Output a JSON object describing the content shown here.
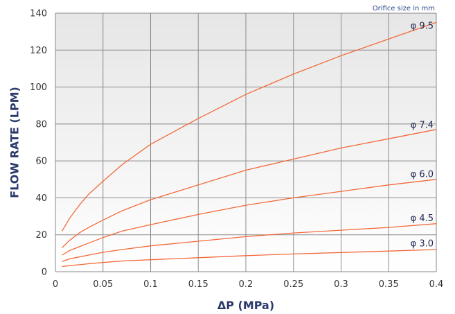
{
  "chart_data": {
    "type": "line",
    "title": "",
    "xlabel": "ΔP (MPa)",
    "ylabel": "FLOW RATE (LPM)",
    "annotation": "Orifice size in mm",
    "xlim": [
      0,
      0.4
    ],
    "ylim": [
      0,
      140
    ],
    "x_ticks": [
      "0",
      "0.05",
      "0.1",
      "0.15",
      "0.2",
      "0.25",
      "0.3",
      "0.35",
      "0.4"
    ],
    "y_ticks": [
      "0",
      "20",
      "40",
      "60",
      "80",
      "100",
      "120",
      "140"
    ],
    "grid": true,
    "colors": {
      "line": "#f26a3a",
      "plot_bg_top": "#e6e6e6",
      "plot_bg_bottom": "#ffffff",
      "grid": "#8a8a8a",
      "label": "#222a55"
    },
    "series": [
      {
        "name": "φ 9.5",
        "x": [
          0.007,
          0.015,
          0.025,
          0.035,
          0.05,
          0.07,
          0.1,
          0.15,
          0.2,
          0.25,
          0.3,
          0.35,
          0.4
        ],
        "y": [
          22,
          29,
          36,
          42,
          49,
          58,
          69,
          83,
          96,
          107,
          117,
          126,
          135
        ]
      },
      {
        "name": "φ 7.4",
        "x": [
          0.007,
          0.015,
          0.025,
          0.035,
          0.05,
          0.07,
          0.1,
          0.15,
          0.2,
          0.25,
          0.3,
          0.35,
          0.4
        ],
        "y": [
          13,
          17,
          21,
          24,
          28,
          33,
          39,
          47,
          55,
          61,
          67,
          72,
          77
        ]
      },
      {
        "name": "φ 6.0",
        "x": [
          0.007,
          0.015,
          0.025,
          0.035,
          0.05,
          0.07,
          0.1,
          0.15,
          0.2,
          0.25,
          0.3,
          0.35,
          0.4
        ],
        "y": [
          9,
          11.5,
          13.5,
          15.5,
          18.5,
          22,
          25.5,
          31,
          36,
          40,
          43.5,
          47,
          50
        ]
      },
      {
        "name": "φ 4.5",
        "x": [
          0.007,
          0.015,
          0.025,
          0.035,
          0.05,
          0.07,
          0.1,
          0.15,
          0.2,
          0.25,
          0.3,
          0.35,
          0.4
        ],
        "y": [
          5.5,
          7,
          8,
          9,
          10.5,
          12,
          14,
          16.5,
          19,
          21,
          22.5,
          24,
          26
        ]
      },
      {
        "name": "φ 3.0",
        "x": [
          0.007,
          0.015,
          0.025,
          0.035,
          0.05,
          0.07,
          0.1,
          0.15,
          0.2,
          0.25,
          0.3,
          0.35,
          0.4
        ],
        "y": [
          2.8,
          3.3,
          3.8,
          4.3,
          5,
          5.8,
          6.5,
          7.6,
          8.7,
          9.6,
          10.4,
          11.2,
          12
        ]
      }
    ]
  }
}
